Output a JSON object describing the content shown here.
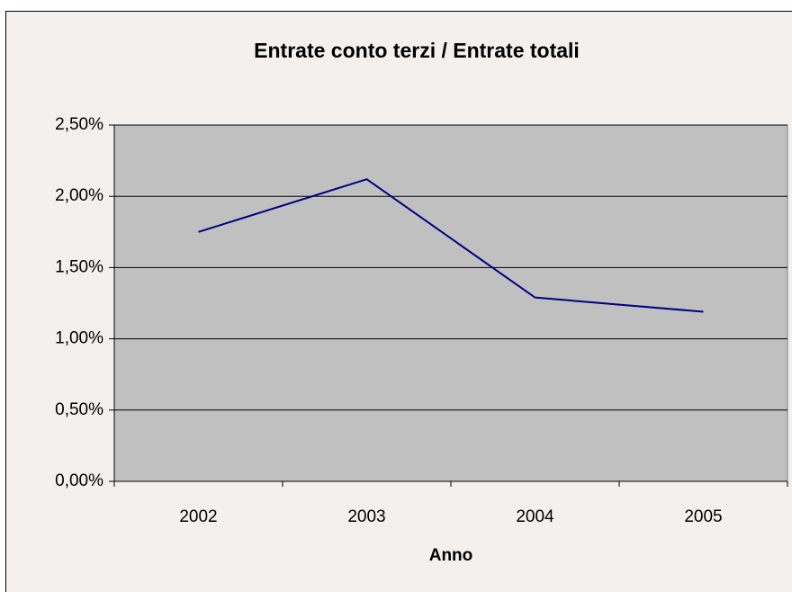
{
  "chart_data": {
    "type": "line",
    "title": "Entrate conto terzi / Entrate totali",
    "x_label": "Anno",
    "categories": [
      "2002",
      "2003",
      "2004",
      "2005"
    ],
    "series": [
      {
        "name": "Entrate conto terzi / Entrate totali",
        "color": "#000080",
        "values": [
          1.75,
          2.12,
          1.29,
          1.19
        ]
      }
    ],
    "ylim": [
      0,
      2.5
    ],
    "yticks": [
      {
        "value": 0,
        "label": "0,00%"
      },
      {
        "value": 0.5,
        "label": "0,50%"
      },
      {
        "value": 1,
        "label": "1,00%"
      },
      {
        "value": 1.5,
        "label": "1,50%"
      },
      {
        "value": 2,
        "label": "2,00%"
      },
      {
        "value": 2.5,
        "label": "2,50%"
      }
    ],
    "grid": true,
    "plot_background": "#c0c0c0"
  }
}
